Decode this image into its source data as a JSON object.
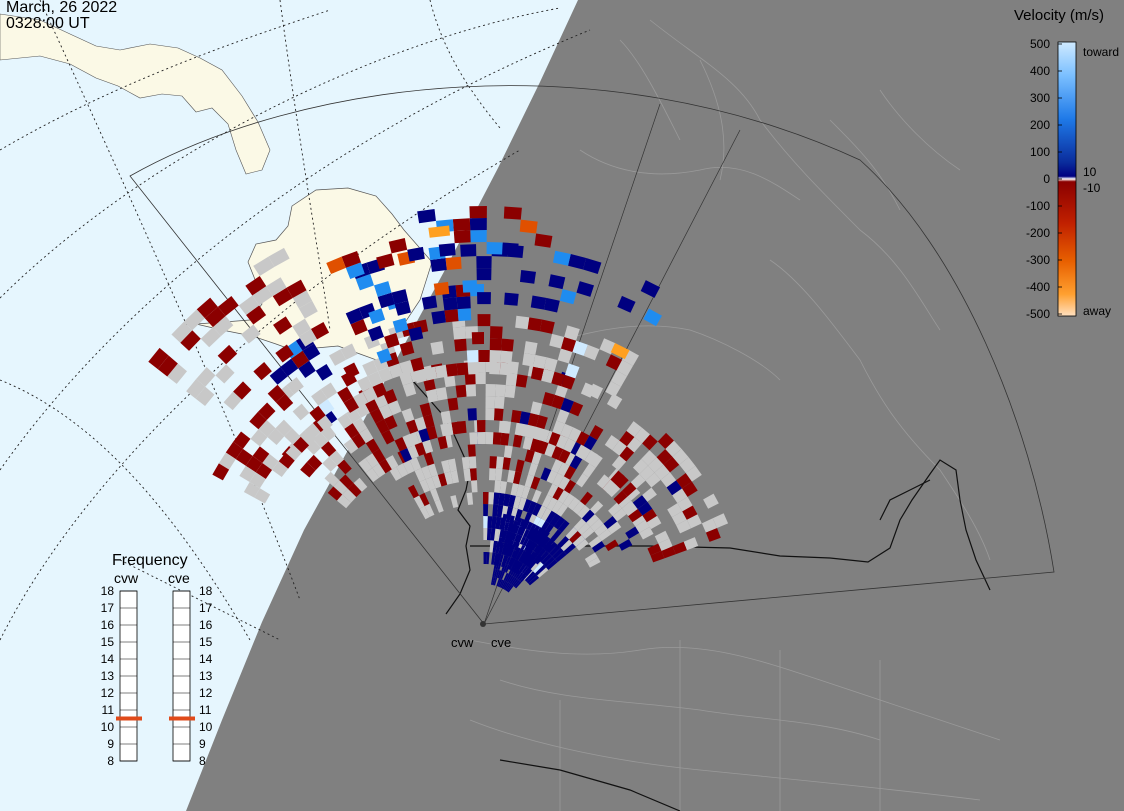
{
  "header": {
    "date": "March, 26 2022",
    "time": "0328:00 UT"
  },
  "velocity_scale": {
    "title": "Velocity (m/s)",
    "toward_label": "toward",
    "away_label": "away",
    "ticks": [
      "500",
      "400",
      "300",
      "200",
      "100",
      "0",
      "-100",
      "-200",
      "-300",
      "-400",
      "-500"
    ],
    "inner_ticks": [
      "10",
      "-10"
    ],
    "colors": {
      "toward_top": "#cfeaff",
      "toward_mid": "#1f8cf0",
      "toward_low": "#0a2c8c",
      "zero_dark": "#000080",
      "away_low": "#8b0000",
      "away_mid": "#e05000",
      "away_high": "#ffa020",
      "away_top": "#ffd8b0",
      "ground_scatter": "#c8c8c8"
    }
  },
  "frequency": {
    "title": "Frequency",
    "radars": [
      "cvw",
      "cve"
    ],
    "ticks": [
      "18",
      "17",
      "16",
      "15",
      "14",
      "13",
      "12",
      "11",
      "10",
      "9",
      "8"
    ],
    "cvw_value": 10.5,
    "cve_value": 10.5,
    "marker_color": "#e04a1a"
  },
  "radar_sites": {
    "cvw": "cvw",
    "cve": "cve"
  },
  "map": {
    "night_color": "#808080",
    "day_ocean_color": "#e6f6fe",
    "day_land_color": "#fbf9e6"
  }
}
